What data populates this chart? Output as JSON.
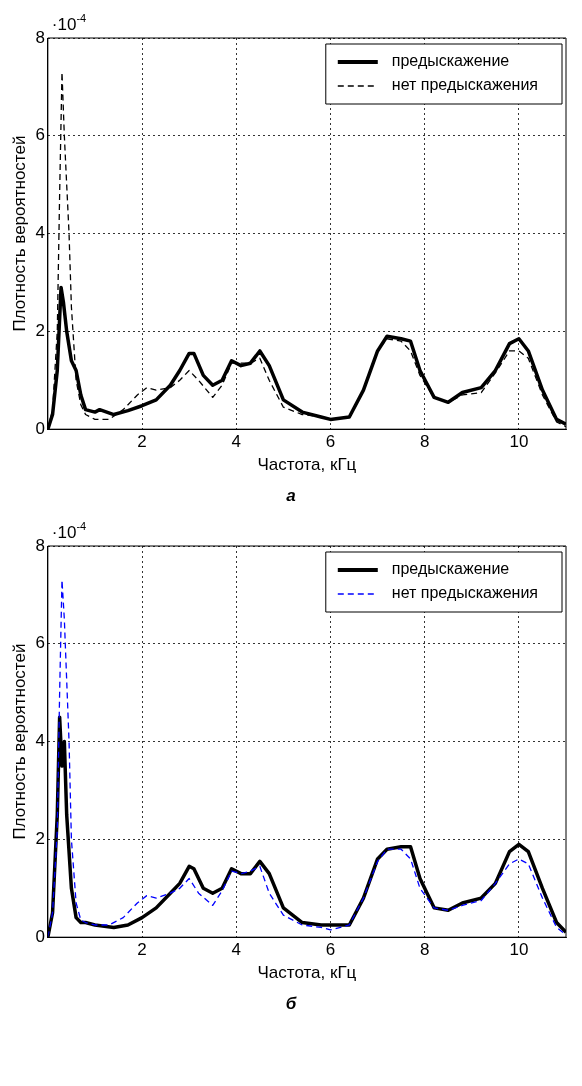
{
  "chart_data": [
    {
      "type": "line",
      "xlabel": "Частота, кГц",
      "ylabel": "Плотность вероятностей",
      "annotations": [
        "·10$^{-4}$",
        "а"
      ],
      "xlim": [
        0,
        11
      ],
      "ylim": [
        0,
        8
      ],
      "xticks": [
        2,
        4,
        6,
        8,
        10
      ],
      "yticks": [
        0,
        2,
        4,
        6,
        8
      ],
      "grid": true,
      "legend": "top right",
      "marker": "none",
      "series": [
        {
          "name": "предыскажение",
          "color": "#000000",
          "line_style": "solid",
          "x": [
            0,
            0.1,
            0.2,
            0.28,
            0.33,
            0.4,
            0.5,
            0.6,
            0.7,
            0.8,
            1.0,
            1.1,
            1.4,
            1.7,
            2.0,
            2.3,
            2.6,
            2.8,
            3.0,
            3.1,
            3.3,
            3.5,
            3.7,
            3.9,
            4.1,
            4.3,
            4.5,
            4.7,
            5.0,
            5.4,
            5.8,
            6.0,
            6.4,
            6.7,
            7.0,
            7.2,
            7.5,
            7.7,
            7.9,
            8.2,
            8.5,
            8.8,
            9.2,
            9.5,
            9.8,
            10.0,
            10.2,
            10.5,
            10.8,
            11
          ],
          "values": [
            0,
            0.3,
            1.2,
            2.9,
            2.6,
            2.0,
            1.4,
            1.2,
            0.7,
            0.4,
            0.35,
            0.4,
            0.3,
            0.38,
            0.48,
            0.6,
            0.9,
            1.2,
            1.55,
            1.55,
            1.1,
            0.9,
            1.0,
            1.4,
            1.3,
            1.35,
            1.6,
            1.3,
            0.6,
            0.35,
            0.25,
            0.2,
            0.25,
            0.8,
            1.6,
            1.9,
            1.85,
            1.8,
            1.2,
            0.65,
            0.55,
            0.75,
            0.85,
            1.2,
            1.75,
            1.85,
            1.6,
            0.8,
            0.2,
            0.1
          ]
        },
        {
          "name": "нет предыскажения",
          "color": "#000000",
          "line_style": "dashed",
          "x": [
            0,
            0.1,
            0.2,
            0.25,
            0.3,
            0.35,
            0.45,
            0.5,
            0.6,
            0.7,
            0.8,
            1.0,
            1.3,
            1.6,
            1.9,
            2.1,
            2.3,
            2.6,
            2.8,
            3.0,
            3.2,
            3.5,
            3.7,
            3.9,
            4.1,
            4.3,
            4.5,
            4.7,
            5.0,
            5.4,
            5.8,
            6.0,
            6.4,
            6.7,
            7.0,
            7.2,
            7.5,
            7.7,
            7.9,
            8.2,
            8.5,
            8.8,
            9.2,
            9.5,
            9.8,
            10.0,
            10.2,
            10.5,
            10.8,
            11
          ],
          "values": [
            0,
            0.4,
            2.0,
            4.8,
            7.3,
            6.0,
            4.0,
            2.5,
            1.0,
            0.5,
            0.3,
            0.2,
            0.2,
            0.4,
            0.7,
            0.85,
            0.8,
            0.85,
            1.0,
            1.2,
            1.0,
            0.65,
            0.9,
            1.35,
            1.35,
            1.35,
            1.45,
            1.0,
            0.45,
            0.3,
            0.25,
            0.2,
            0.25,
            0.8,
            1.6,
            1.85,
            1.8,
            1.6,
            1.1,
            0.65,
            0.55,
            0.7,
            0.75,
            1.15,
            1.6,
            1.6,
            1.45,
            0.7,
            0.15,
            0.05
          ]
        }
      ]
    },
    {
      "type": "line",
      "xlabel": "Частота, кГц",
      "ylabel": "Плотность вероятностей",
      "annotations": [
        "·10$^{-4}$",
        "б"
      ],
      "xlim": [
        0,
        11
      ],
      "ylim": [
        0,
        8
      ],
      "xticks": [
        2,
        4,
        6,
        8,
        10
      ],
      "yticks": [
        0,
        2,
        4,
        6,
        8
      ],
      "grid": true,
      "legend": "top right",
      "marker": "none",
      "series": [
        {
          "name": "предыскажение",
          "color": "#000000",
          "line_style": "solid",
          "x": [
            0,
            0.1,
            0.2,
            0.25,
            0.3,
            0.35,
            0.4,
            0.5,
            0.6,
            0.7,
            0.8,
            1.0,
            1.4,
            1.7,
            2.0,
            2.3,
            2.6,
            2.8,
            3.0,
            3.1,
            3.3,
            3.5,
            3.7,
            3.9,
            4.1,
            4.3,
            4.5,
            4.7,
            5.0,
            5.4,
            5.8,
            6.0,
            6.4,
            6.7,
            7.0,
            7.2,
            7.5,
            7.7,
            7.9,
            8.2,
            8.5,
            8.8,
            9.2,
            9.5,
            9.8,
            10.0,
            10.2,
            10.5,
            10.8,
            11
          ],
          "values": [
            0,
            0.5,
            2.5,
            4.5,
            3.5,
            4.0,
            2.5,
            1.0,
            0.4,
            0.3,
            0.3,
            0.25,
            0.2,
            0.25,
            0.4,
            0.6,
            0.9,
            1.1,
            1.45,
            1.4,
            1.0,
            0.9,
            1.0,
            1.4,
            1.3,
            1.3,
            1.55,
            1.3,
            0.6,
            0.3,
            0.25,
            0.25,
            0.25,
            0.8,
            1.6,
            1.8,
            1.85,
            1.85,
            1.2,
            0.6,
            0.55,
            0.7,
            0.8,
            1.1,
            1.75,
            1.9,
            1.75,
            1.0,
            0.3,
            0.1
          ]
        },
        {
          "name": "нет предыскажения",
          "color": "#0000ff",
          "line_style": "dashed",
          "x": [
            0,
            0.1,
            0.2,
            0.25,
            0.3,
            0.35,
            0.45,
            0.5,
            0.6,
            0.7,
            0.8,
            1.0,
            1.3,
            1.6,
            1.9,
            2.1,
            2.3,
            2.6,
            2.8,
            3.0,
            3.2,
            3.5,
            3.7,
            3.9,
            4.1,
            4.3,
            4.5,
            4.7,
            5.0,
            5.4,
            5.8,
            6.0,
            6.4,
            6.7,
            7.0,
            7.2,
            7.5,
            7.7,
            7.9,
            8.2,
            8.5,
            8.8,
            9.2,
            9.5,
            9.8,
            10.0,
            10.2,
            10.5,
            10.8,
            11
          ],
          "values": [
            0,
            0.5,
            2.2,
            5.0,
            7.3,
            6.5,
            4.0,
            2.0,
            0.7,
            0.35,
            0.3,
            0.25,
            0.25,
            0.4,
            0.7,
            0.85,
            0.8,
            0.9,
            1.0,
            1.2,
            0.9,
            0.65,
            0.95,
            1.35,
            1.3,
            1.35,
            1.45,
            0.9,
            0.45,
            0.25,
            0.2,
            0.15,
            0.25,
            0.8,
            1.55,
            1.8,
            1.8,
            1.6,
            1.0,
            0.6,
            0.55,
            0.65,
            0.75,
            1.1,
            1.5,
            1.6,
            1.5,
            0.8,
            0.2,
            0.05
          ]
        }
      ]
    }
  ]
}
